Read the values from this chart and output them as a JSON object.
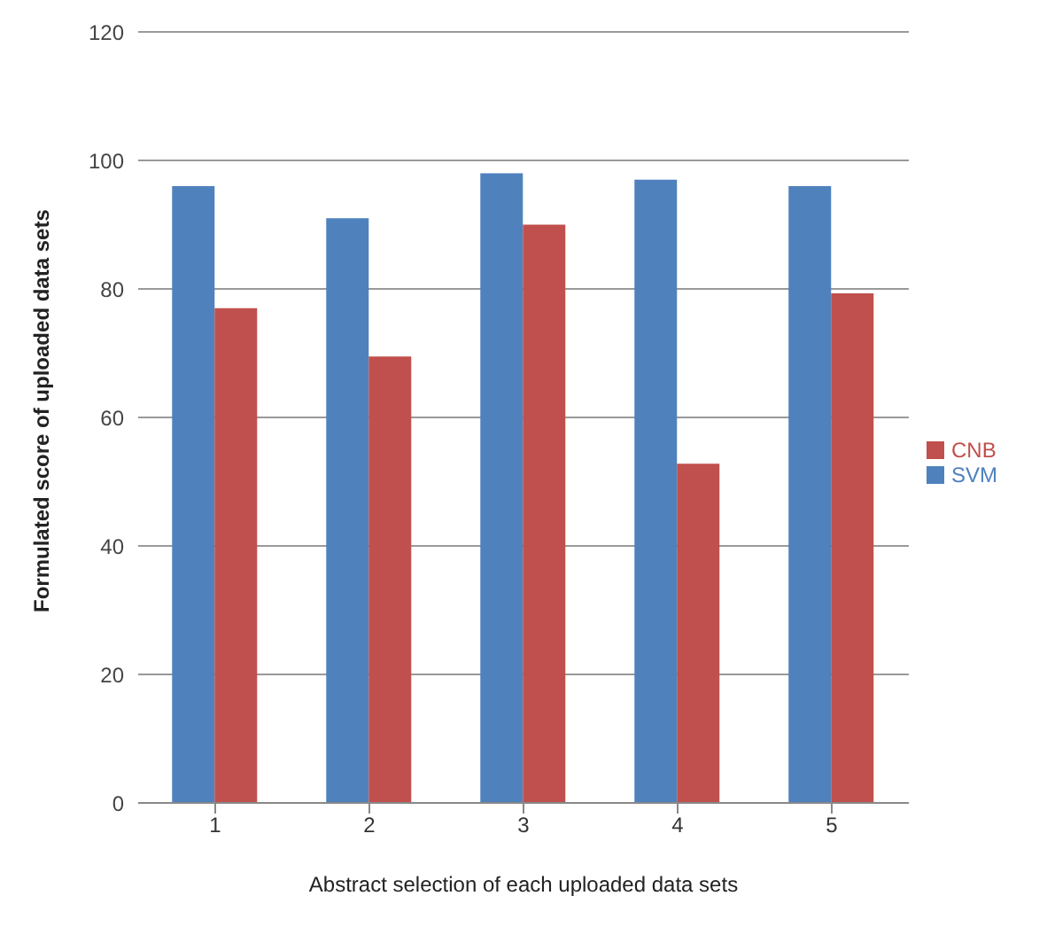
{
  "chart_data": {
    "type": "bar",
    "xlabel": "Abstract selection of each uploaded data sets",
    "ylabel": "Formulated score of uploaded data sets",
    "categories": [
      "1",
      "2",
      "3",
      "4",
      "5"
    ],
    "series": [
      {
        "name": "SVM",
        "color": "#4f81bd",
        "values": [
          96,
          91,
          98,
          97,
          96
        ]
      },
      {
        "name": "CNB",
        "color": "#c0504d",
        "values": [
          77,
          69.5,
          90,
          52.8,
          79.3
        ]
      }
    ],
    "ylim": [
      0,
      120
    ],
    "yticks": [
      0,
      20,
      40,
      60,
      80,
      100,
      120
    ],
    "grid": "y",
    "legend": "right"
  }
}
